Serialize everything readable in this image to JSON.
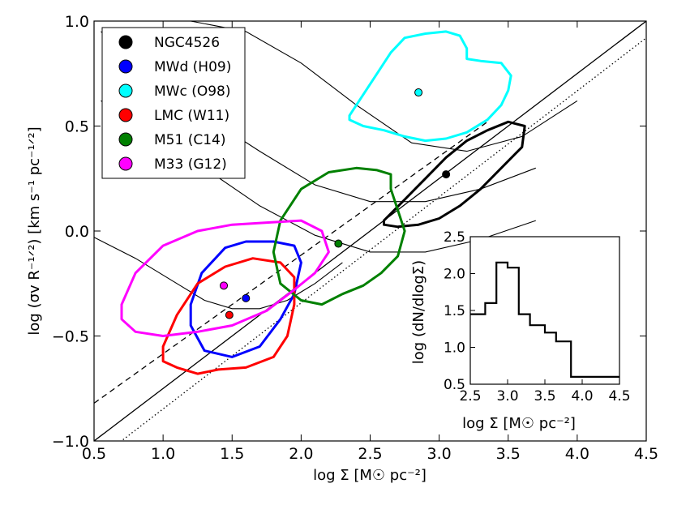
{
  "chart_data": [
    {
      "type": "scatter",
      "name": "main",
      "xlabel": "log Σ [M☉ pc⁻²]",
      "ylabel": "log (σv R⁻¹ᐟ²) [km s⁻¹ pc⁻¹ᐟ²]",
      "xlim": [
        0.5,
        4.5
      ],
      "ylim": [
        -1.0,
        1.0
      ],
      "xticks": [
        0.5,
        1.0,
        1.5,
        2.0,
        2.5,
        3.0,
        3.5,
        4.0,
        4.5
      ],
      "yticks": [
        -1.0,
        -0.5,
        0.0,
        0.5,
        1.0
      ],
      "xtick_labels": [
        "0.5",
        "1.0",
        "1.5",
        "2.0",
        "2.5",
        "3.0",
        "3.5",
        "4.0",
        "4.5"
      ],
      "ytick_labels": [
        "−1.0",
        "−0.5",
        "0.0",
        "0.5",
        "1.0"
      ],
      "legend_position": "top-left",
      "series": [
        {
          "name": "NGC4526",
          "color": "#000000",
          "point": [
            3.05,
            0.27
          ],
          "contour": [
            [
              2.6,
              0.05
            ],
            [
              2.75,
              0.15
            ],
            [
              2.9,
              0.25
            ],
            [
              3.05,
              0.35
            ],
            [
              3.2,
              0.43
            ],
            [
              3.35,
              0.48
            ],
            [
              3.5,
              0.52
            ],
            [
              3.62,
              0.5
            ],
            [
              3.6,
              0.4
            ],
            [
              3.45,
              0.3
            ],
            [
              3.3,
              0.2
            ],
            [
              3.15,
              0.12
            ],
            [
              3.0,
              0.06
            ],
            [
              2.85,
              0.03
            ],
            [
              2.7,
              0.02
            ],
            [
              2.6,
              0.03
            ]
          ]
        },
        {
          "name": "MWd (H09)",
          "color": "#0000ff",
          "point": [
            1.6,
            -0.32
          ],
          "contour": [
            [
              1.2,
              -0.35
            ],
            [
              1.28,
              -0.2
            ],
            [
              1.45,
              -0.08
            ],
            [
              1.6,
              -0.05
            ],
            [
              1.8,
              -0.05
            ],
            [
              1.95,
              -0.07
            ],
            [
              2.0,
              -0.15
            ],
            [
              1.95,
              -0.3
            ],
            [
              1.85,
              -0.42
            ],
            [
              1.7,
              -0.55
            ],
            [
              1.5,
              -0.6
            ],
            [
              1.3,
              -0.57
            ],
            [
              1.2,
              -0.45
            ]
          ]
        },
        {
          "name": "MWc (O98)",
          "color": "#00ffff",
          "point": [
            2.85,
            0.66
          ],
          "contour": [
            [
              2.35,
              0.55
            ],
            [
              2.45,
              0.65
            ],
            [
              2.55,
              0.75
            ],
            [
              2.65,
              0.85
            ],
            [
              2.75,
              0.92
            ],
            [
              2.9,
              0.94
            ],
            [
              3.05,
              0.95
            ],
            [
              3.15,
              0.93
            ],
            [
              3.2,
              0.87
            ],
            [
              3.2,
              0.82
            ],
            [
              3.3,
              0.81
            ],
            [
              3.45,
              0.8
            ],
            [
              3.52,
              0.74
            ],
            [
              3.5,
              0.67
            ],
            [
              3.45,
              0.6
            ],
            [
              3.35,
              0.53
            ],
            [
              3.2,
              0.47
            ],
            [
              3.05,
              0.44
            ],
            [
              2.9,
              0.43
            ],
            [
              2.75,
              0.45
            ],
            [
              2.6,
              0.48
            ],
            [
              2.45,
              0.5
            ],
            [
              2.35,
              0.53
            ]
          ]
        },
        {
          "name": "LMC (W11)",
          "color": "#ff0000",
          "point": [
            1.48,
            -0.4
          ],
          "contour": [
            [
              1.0,
              -0.55
            ],
            [
              1.1,
              -0.4
            ],
            [
              1.25,
              -0.25
            ],
            [
              1.45,
              -0.17
            ],
            [
              1.65,
              -0.13
            ],
            [
              1.85,
              -0.15
            ],
            [
              1.95,
              -0.22
            ],
            [
              1.95,
              -0.35
            ],
            [
              1.9,
              -0.5
            ],
            [
              1.8,
              -0.6
            ],
            [
              1.6,
              -0.65
            ],
            [
              1.4,
              -0.66
            ],
            [
              1.25,
              -0.68
            ],
            [
              1.1,
              -0.65
            ],
            [
              1.0,
              -0.62
            ]
          ]
        },
        {
          "name": "M51 (C14)",
          "color": "#008000",
          "point": [
            2.27,
            -0.06
          ],
          "contour": [
            [
              1.8,
              -0.1
            ],
            [
              1.85,
              0.05
            ],
            [
              2.0,
              0.2
            ],
            [
              2.2,
              0.28
            ],
            [
              2.4,
              0.3
            ],
            [
              2.55,
              0.29
            ],
            [
              2.65,
              0.27
            ],
            [
              2.65,
              0.2
            ],
            [
              2.7,
              0.1
            ],
            [
              2.75,
              0.0
            ],
            [
              2.7,
              -0.12
            ],
            [
              2.58,
              -0.2
            ],
            [
              2.45,
              -0.26
            ],
            [
              2.3,
              -0.3
            ],
            [
              2.15,
              -0.35
            ],
            [
              2.0,
              -0.33
            ],
            [
              1.85,
              -0.25
            ]
          ]
        },
        {
          "name": "M33 (G12)",
          "color": "#ff00ff",
          "point": [
            1.44,
            -0.26
          ],
          "contour": [
            [
              0.7,
              -0.35
            ],
            [
              0.8,
              -0.2
            ],
            [
              1.0,
              -0.07
            ],
            [
              1.25,
              0.0
            ],
            [
              1.5,
              0.03
            ],
            [
              1.75,
              0.04
            ],
            [
              2.0,
              0.05
            ],
            [
              2.15,
              0.0
            ],
            [
              2.2,
              -0.1
            ],
            [
              2.1,
              -0.2
            ],
            [
              1.95,
              -0.28
            ],
            [
              1.75,
              -0.38
            ],
            [
              1.5,
              -0.45
            ],
            [
              1.25,
              -0.48
            ],
            [
              1.0,
              -0.5
            ],
            [
              0.8,
              -0.48
            ],
            [
              0.7,
              -0.42
            ]
          ]
        }
      ],
      "lines": [
        {
          "style": "solid",
          "points": [
            [
              0.5,
              -1.0
            ],
            [
              4.5,
              1.0
            ]
          ]
        },
        {
          "style": "dashed",
          "points": [
            [
              0.5,
              -0.82
            ],
            [
              3.35,
              0.52
            ]
          ]
        },
        {
          "style": "dotted",
          "points": [
            [
              0.5,
              -1.1
            ],
            [
              4.5,
              0.92
            ]
          ]
        },
        {
          "style": "solid-thin",
          "points": [
            [
              1.2,
              1.0
            ],
            [
              1.6,
              0.95
            ],
            [
              2.0,
              0.8
            ],
            [
              2.4,
              0.6
            ],
            [
              2.8,
              0.42
            ],
            [
              3.2,
              0.38
            ],
            [
              3.6,
              0.45
            ],
            [
              4.0,
              0.62
            ]
          ]
        },
        {
          "style": "solid-thin",
          "points": [
            [
              0.55,
              0.95
            ],
            [
              0.9,
              0.75
            ],
            [
              1.3,
              0.55
            ],
            [
              1.7,
              0.38
            ],
            [
              2.1,
              0.22
            ],
            [
              2.5,
              0.14
            ],
            [
              2.9,
              0.14
            ],
            [
              3.3,
              0.2
            ],
            [
              3.7,
              0.3
            ]
          ]
        },
        {
          "style": "solid-thin",
          "points": [
            [
              0.55,
              0.62
            ],
            [
              0.9,
              0.48
            ],
            [
              1.3,
              0.3
            ],
            [
              1.7,
              0.12
            ],
            [
              2.1,
              -0.02
            ],
            [
              2.5,
              -0.1
            ],
            [
              2.9,
              -0.1
            ],
            [
              3.3,
              -0.04
            ],
            [
              3.7,
              0.05
            ]
          ]
        },
        {
          "style": "solid-thin",
          "points": [
            [
              0.5,
              -0.03
            ],
            [
              0.8,
              -0.13
            ],
            [
              1.1,
              -0.25
            ],
            [
              1.3,
              -0.33
            ],
            [
              1.5,
              -0.37
            ],
            [
              1.7,
              -0.37
            ],
            [
              1.9,
              -0.33
            ],
            [
              2.1,
              -0.25
            ],
            [
              2.3,
              -0.15
            ]
          ]
        }
      ]
    },
    {
      "type": "bar",
      "name": "inset-histogram",
      "xlabel": "log Σ [M☉ pc⁻²]",
      "ylabel": "log (dN/dlogΣ)",
      "xlim": [
        2.5,
        4.5
      ],
      "ylim": [
        0.5,
        2.5
      ],
      "xticks": [
        2.5,
        3.0,
        3.5,
        4.0,
        4.5
      ],
      "yticks": [
        0.5,
        1.0,
        1.5,
        2.0,
        2.5
      ],
      "xtick_labels": [
        "2.5",
        "3.0",
        "3.5",
        "4.0",
        "4.5"
      ],
      "ytick_labels": [
        "0.5",
        "1.0",
        "1.5",
        "2.0",
        "2.5"
      ],
      "bin_edges": [
        2.5,
        2.7,
        2.85,
        3.0,
        3.15,
        3.3,
        3.5,
        3.65,
        3.85,
        4.1,
        4.5
      ],
      "values": [
        1.45,
        1.6,
        2.15,
        2.08,
        1.45,
        1.3,
        1.2,
        1.08,
        0.6,
        0.6
      ]
    }
  ]
}
